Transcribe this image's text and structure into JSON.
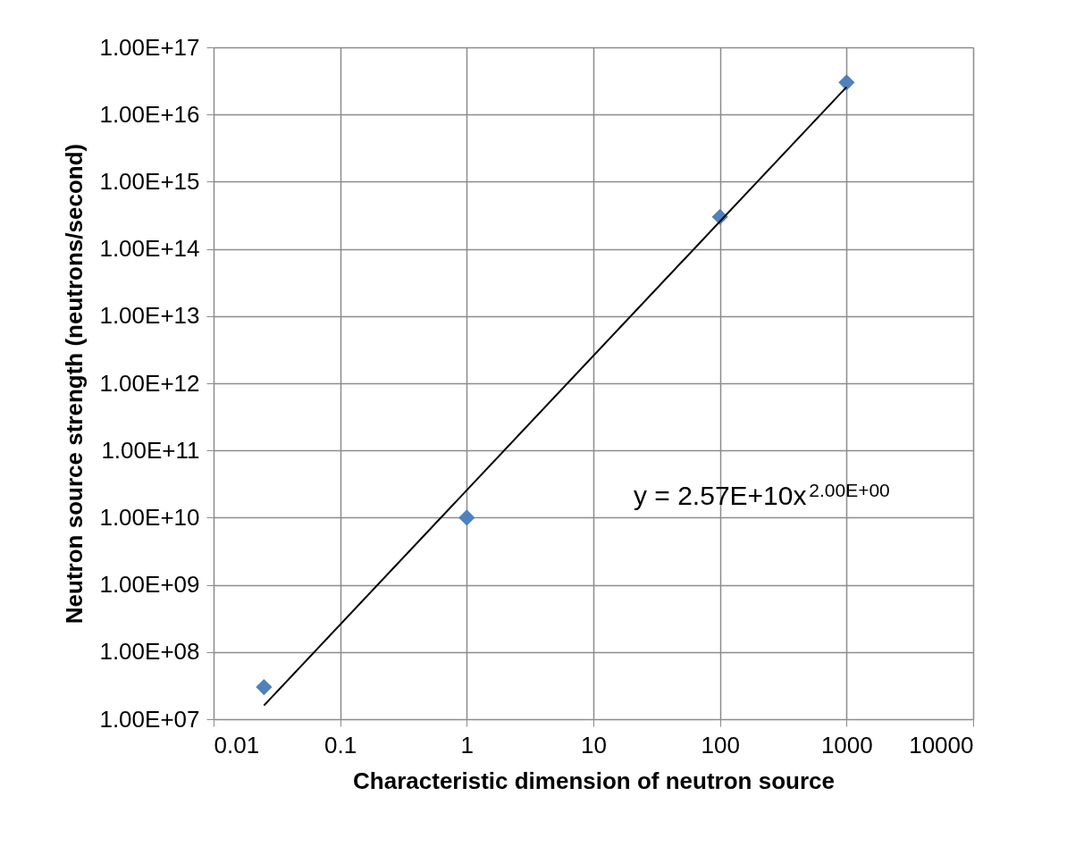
{
  "chart_data": {
    "type": "scatter",
    "xlabel": "Characteristic dimension of neutron source",
    "ylabel": "Neutron source strength (neutrons/second)",
    "log": "xy",
    "grid": true,
    "marker": "diamond",
    "xlim": [
      0.01,
      10000
    ],
    "xticks": [
      0.01,
      0.1,
      1,
      10,
      100,
      1000,
      10000
    ],
    "ylim": [
      10000000.0,
      1e+17
    ],
    "yticks": [
      {
        "value": 10000000.0,
        "label": "1.00E+07"
      },
      {
        "value": 100000000.0,
        "label": "1.00E+08"
      },
      {
        "value": 1000000000.0,
        "label": "1.00E+09"
      },
      {
        "value": 10000000000.0,
        "label": "1.00E+10"
      },
      {
        "value": 100000000000.0,
        "label": "1.00E+11"
      },
      {
        "value": 1000000000000.0,
        "label": "1.00E+12"
      },
      {
        "value": 10000000000000.0,
        "label": "1.00E+13"
      },
      {
        "value": 100000000000000.0,
        "label": "1.00E+14"
      },
      {
        "value": 1000000000000000.0,
        "label": "1.00E+15"
      },
      {
        "value": 1e+16,
        "label": "1.00E+16"
      },
      {
        "value": 1e+17,
        "label": "1.00E+17"
      }
    ],
    "series": [
      {
        "color": "#4f81bd",
        "x": [
          0.025,
          1,
          100,
          1000
        ],
        "values": [
          30000000.0,
          10000000000.0,
          300000000000000.0,
          3e+16
        ]
      },
      {
        "type": "line",
        "color": "#000000",
        "line_style": "solid",
        "marker": "none",
        "x": [
          0.025,
          1000
        ],
        "values": [
          16000000.0,
          2.57e+16
        ]
      }
    ],
    "annotations": [
      "y = 2.57E+10x$^{2.00E+00}$"
    ]
  }
}
